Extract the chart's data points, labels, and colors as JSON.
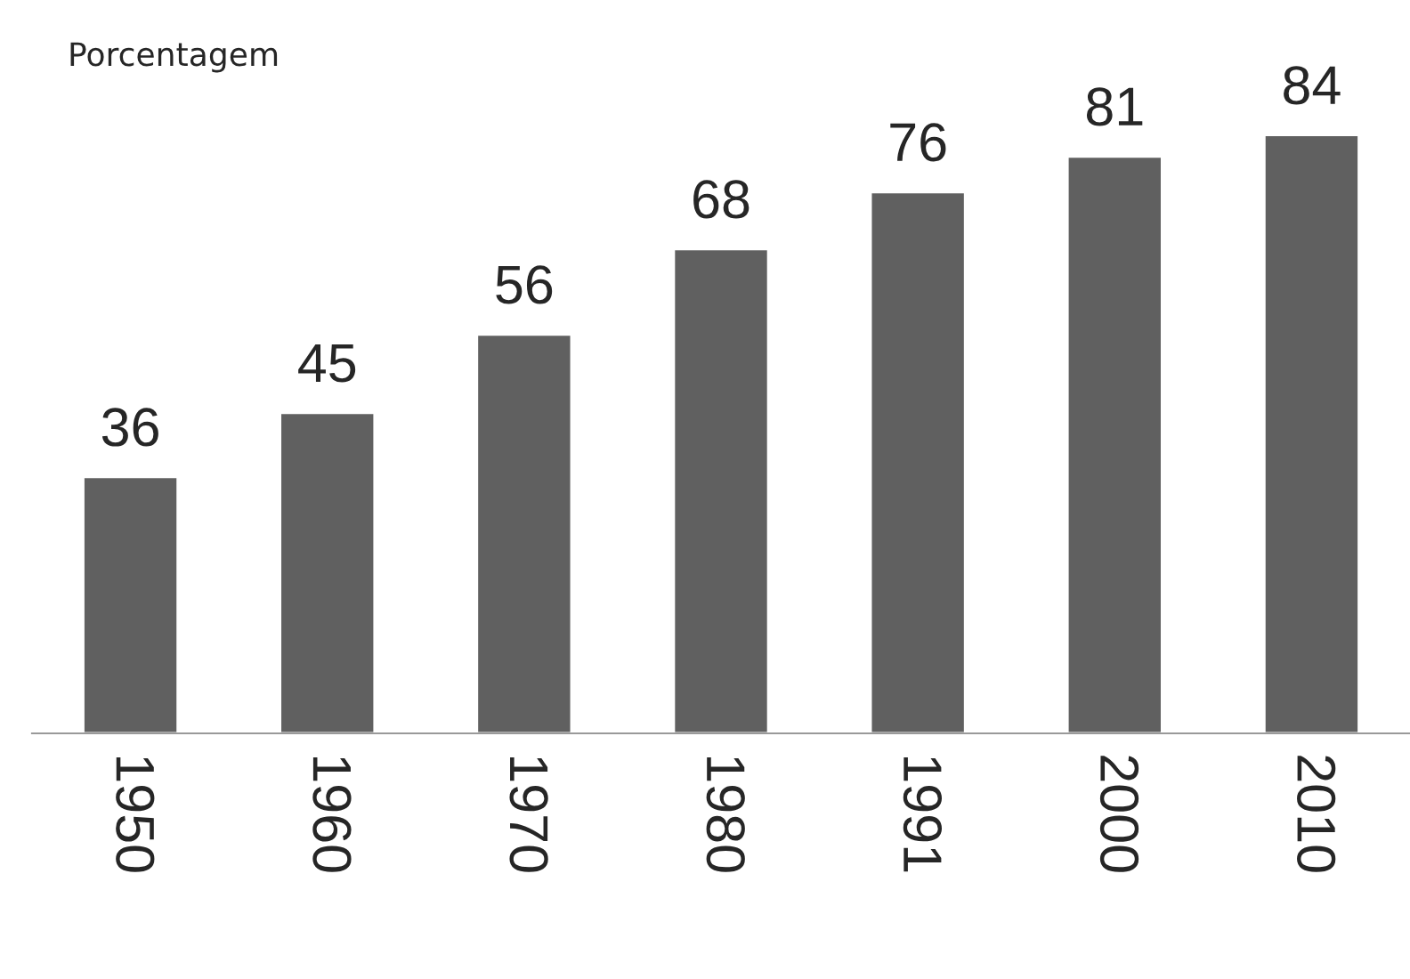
{
  "chart_data": {
    "type": "bar",
    "ylabel": "Porcentagem",
    "categories": [
      "1950",
      "1960",
      "1970",
      "1980",
      "1991",
      "2000",
      "2010"
    ],
    "values": [
      36,
      45,
      56,
      68,
      76,
      81,
      84
    ],
    "color": "#606060",
    "data_labels": true,
    "grid": false,
    "legend": false
  }
}
